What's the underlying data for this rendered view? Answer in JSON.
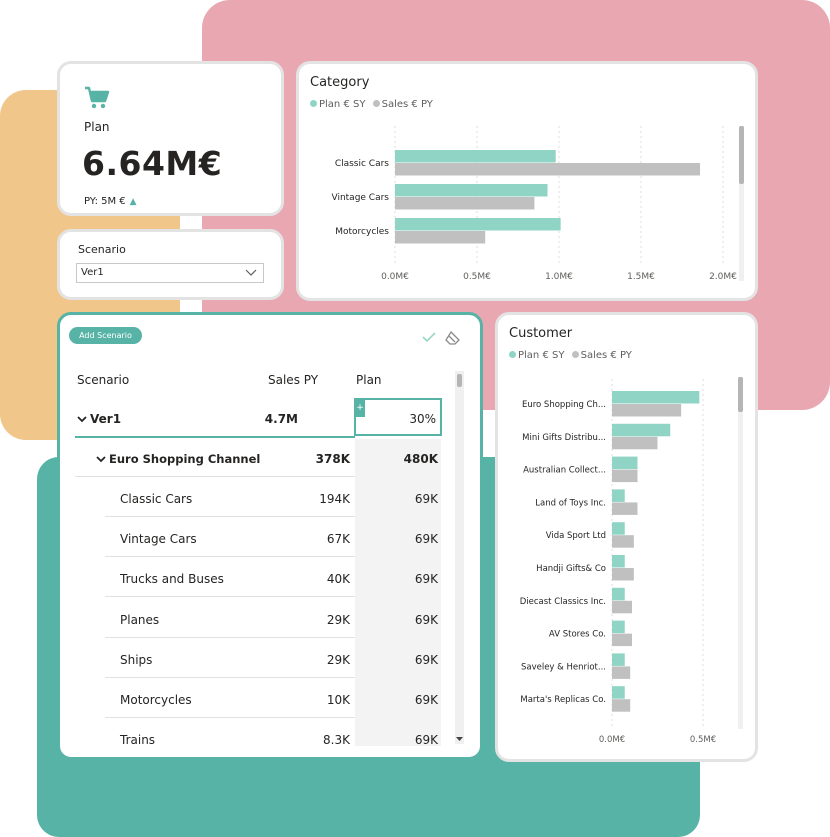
{
  "colors": {
    "plan": "#8fd4c4",
    "sales": "#c0c0c0",
    "accent": "#56b3a6"
  },
  "kpi": {
    "icon": "cart-icon",
    "label": "Plan",
    "value": "6.64M€",
    "py_text": "PY: 5M €",
    "trend": "▲"
  },
  "scenario_slicer": {
    "title": "Scenario",
    "selected": "Ver1"
  },
  "legend": {
    "plan": "Plan € SY",
    "sales": "Sales € PY"
  },
  "category_chart": {
    "title": "Category",
    "chart_data": {
      "type": "bar",
      "orientation": "horizontal",
      "categories": [
        "Classic Cars",
        "Vintage Cars",
        "Motorcycles"
      ],
      "series": [
        {
          "name": "Plan € SY",
          "values": [
            0.98,
            0.93,
            1.01
          ]
        },
        {
          "name": "Sales € PY",
          "values": [
            1.86,
            0.85,
            0.55
          ]
        }
      ],
      "xticks": [
        "0.0M€",
        "0.5M€",
        "1.0M€",
        "1.5M€",
        "2.0M€"
      ],
      "xlim": [
        0,
        2.0
      ],
      "grid": true,
      "legend": "top-left"
    }
  },
  "customer_chart": {
    "title": "Customer",
    "chart_data": {
      "type": "bar",
      "orientation": "horizontal",
      "categories": [
        "Euro Shopping Ch...",
        "Mini Gifts Distribu...",
        "Australian Collect...",
        "Land of Toys Inc.",
        "Vida Sport Ltd",
        "Handji Gifts& Co",
        "Diecast Classics Inc.",
        "AV Stores Co.",
        "Saveley & Henriot...",
        "Marta's Replicas Co."
      ],
      "series": [
        {
          "name": "Plan € SY",
          "values": [
            0.48,
            0.32,
            0.14,
            0.07,
            0.07,
            0.07,
            0.07,
            0.07,
            0.07,
            0.07
          ]
        },
        {
          "name": "Sales € PY",
          "values": [
            0.38,
            0.25,
            0.14,
            0.14,
            0.12,
            0.12,
            0.11,
            0.11,
            0.1,
            0.1
          ]
        }
      ],
      "xticks": [
        "0.0M€",
        "0.5M€"
      ],
      "xlim": [
        0,
        0.5
      ],
      "grid": true,
      "legend": "top-left"
    }
  },
  "matrix": {
    "add_button": "Add Scenario",
    "columns": {
      "scenario": "Scenario",
      "sales": "Sales PY",
      "plan": "Plan"
    },
    "total": {
      "label": "Ver1",
      "sales": "4.7M",
      "plan": "30%"
    },
    "group": {
      "label": "Euro Shopping Channel",
      "sales": "378K",
      "plan": "480K"
    },
    "rows": [
      {
        "label": "Classic Cars",
        "sales": "194K",
        "plan": "69K"
      },
      {
        "label": "Vintage Cars",
        "sales": "67K",
        "plan": "69K"
      },
      {
        "label": "Trucks and Buses",
        "sales": "40K",
        "plan": "69K"
      },
      {
        "label": "Planes",
        "sales": "29K",
        "plan": "69K"
      },
      {
        "label": "Ships",
        "sales": "29K",
        "plan": "69K"
      },
      {
        "label": "Motorcycles",
        "sales": "10K",
        "plan": "69K"
      },
      {
        "label": "Trains",
        "sales": "8.3K",
        "plan": "69K"
      }
    ]
  }
}
